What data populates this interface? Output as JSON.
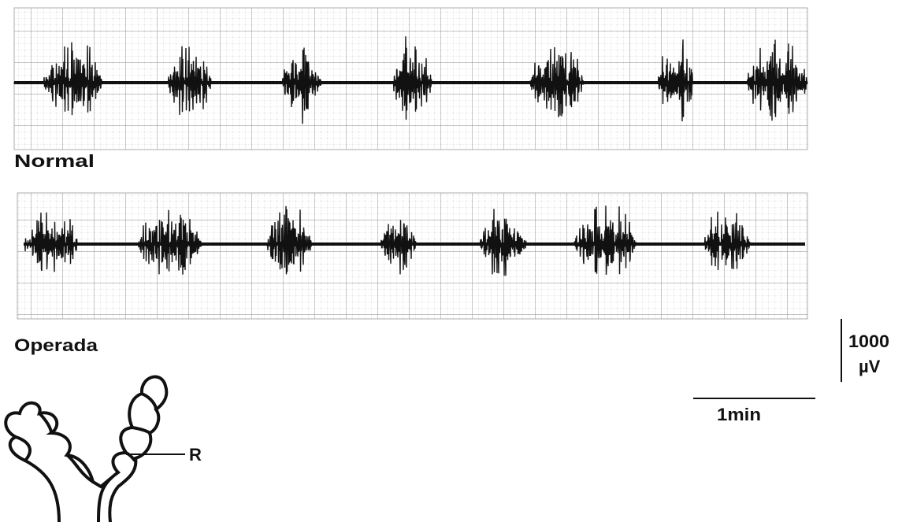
{
  "traces": [
    {
      "label": "Normal"
    },
    {
      "label": "Operada"
    }
  ],
  "scale_bar": {
    "amplitude": "1000",
    "amplitude_unit": "µV",
    "time": "1min"
  },
  "diagram": {
    "label": "R"
  }
}
